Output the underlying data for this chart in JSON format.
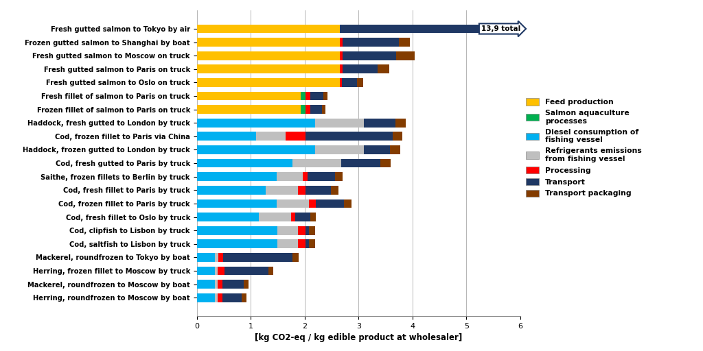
{
  "categories": [
    "Fresh gutted salmon to Tokyo by air",
    "Frozen gutted salmon to Shanghai by boat",
    "Fresh gutted salmon to Moscow on truck",
    "Fresh gutted salmon to Paris on truck",
    "Fresh gutted salmon to Oslo on truck",
    "Fresh fillet of salmon to Paris on truck",
    "Frozen fillet of salmon to Paris on truck",
    "Haddock, fresh gutted to London by truck",
    "Cod, frozen fillet to Paris via China",
    "Haddock, frozen gutted to London by truck",
    "Cod, fresh gutted to Paris by truck",
    "Saithe, frozen fillets to Berlin by truck",
    "Cod, fresh fillet to Paris by truck",
    "Cod, frozen fillet to Paris by truck",
    "Cod, fresh fillet to Oslo by truck",
    "Cod, clipfish to Lisbon by truck",
    "Cod, saltfish to Lisbon by truck",
    "Mackerel, roundfrozen to Tokyo by boat",
    "Herring, frozen fillet to Moscow by truck",
    "Mackerel, roundfrozen to Moscow by boat",
    "Herring, roundfrozen to Moscow by boat"
  ],
  "feed_production": [
    2.65,
    2.65,
    2.65,
    2.65,
    2.65,
    1.93,
    1.93,
    0.0,
    0.0,
    0.0,
    0.0,
    0.0,
    0.0,
    0.0,
    0.0,
    0.0,
    0.0,
    0.0,
    0.0,
    0.0,
    0.0
  ],
  "salmon_aqua": [
    0.0,
    0.0,
    0.0,
    0.0,
    0.0,
    0.08,
    0.08,
    0.0,
    0.0,
    0.0,
    0.0,
    0.0,
    0.0,
    0.0,
    0.0,
    0.0,
    0.0,
    0.0,
    0.0,
    0.0,
    0.0
  ],
  "diesel_fishing": [
    0.0,
    0.0,
    0.0,
    0.0,
    0.0,
    0.0,
    0.0,
    2.2,
    1.1,
    2.2,
    1.78,
    1.48,
    1.28,
    1.48,
    1.15,
    1.5,
    1.5,
    0.33,
    0.33,
    0.33,
    0.33
  ],
  "refrigerants": [
    0.0,
    0.0,
    0.0,
    0.0,
    0.0,
    0.0,
    0.0,
    0.9,
    0.55,
    0.9,
    0.9,
    0.48,
    0.6,
    0.6,
    0.6,
    0.38,
    0.38,
    0.07,
    0.05,
    0.05,
    0.05
  ],
  "processing": [
    0.0,
    0.05,
    0.05,
    0.05,
    0.04,
    0.09,
    0.09,
    0.0,
    0.36,
    0.0,
    0.0,
    0.09,
    0.13,
    0.13,
    0.07,
    0.13,
    0.13,
    0.09,
    0.13,
    0.09,
    0.09
  ],
  "transport": [
    10.85,
    1.05,
    1.0,
    0.65,
    0.28,
    0.25,
    0.22,
    0.58,
    1.62,
    0.48,
    0.72,
    0.52,
    0.48,
    0.52,
    0.28,
    0.07,
    0.07,
    1.28,
    0.82,
    0.4,
    0.36
  ],
  "transport_packaging": [
    0.4,
    0.2,
    0.34,
    0.22,
    0.12,
    0.07,
    0.07,
    0.2,
    0.18,
    0.2,
    0.2,
    0.14,
    0.14,
    0.14,
    0.11,
    0.11,
    0.11,
    0.12,
    0.09,
    0.09,
    0.09
  ],
  "colors": {
    "feed_production": "#FFC000",
    "salmon_aqua": "#00B050",
    "diesel_fishing": "#00B0F0",
    "refrigerants": "#BFBFBF",
    "processing": "#FF0000",
    "transport": "#1F3864",
    "transport_packaging": "#833C00"
  },
  "legend_labels": [
    "Feed production",
    "Salmon aquaculture\nprocesses",
    "Diesel consumption of\nfishing vessel",
    "Refrigerants emissions\nfrom fishing vessel",
    "Processing",
    "Transport",
    "Transport packaging"
  ],
  "xlabel": "[kg CO2-eq / kg edible product at wholesaler]",
  "xlim": [
    0,
    6
  ],
  "annotation_text": "13,9 total",
  "background_color": "#FFFFFF",
  "grid_color": "#AAAAAA"
}
